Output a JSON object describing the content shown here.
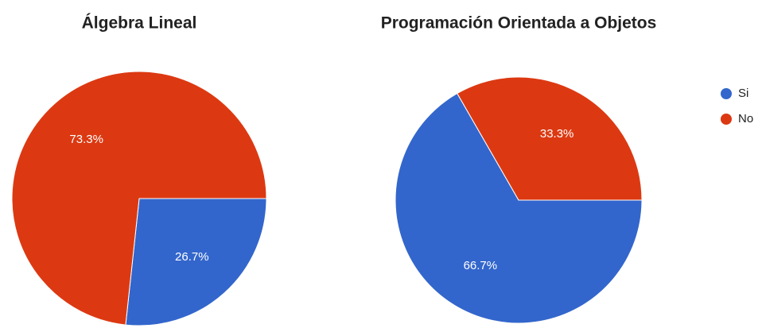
{
  "chart_data": [
    {
      "type": "pie",
      "title": "Álgebra Lineal",
      "categories": [
        "Si",
        "No"
      ],
      "values": [
        26.7,
        73.3
      ],
      "value_labels": [
        "26.7%",
        "73.3%"
      ],
      "colors": [
        "#3366cc",
        "#dc3912"
      ]
    },
    {
      "type": "pie",
      "title": "Programación Orientada a Objetos",
      "categories": [
        "Si",
        "No"
      ],
      "values": [
        66.7,
        33.3
      ],
      "value_labels": [
        "66.7%",
        "33.3%"
      ],
      "colors": [
        "#3366cc",
        "#dc3912"
      ],
      "legend": "right"
    }
  ]
}
